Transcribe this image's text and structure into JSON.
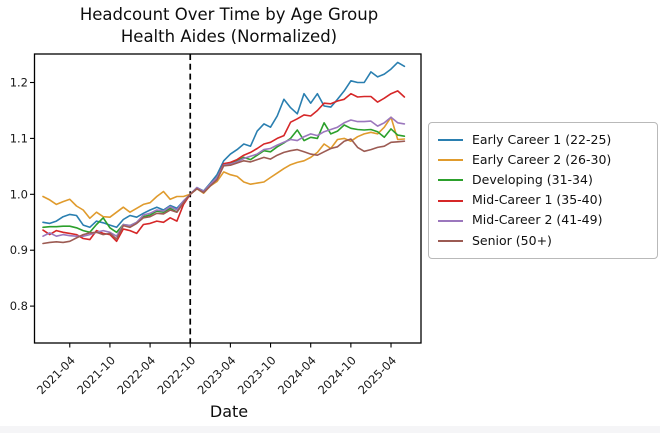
{
  "chart_data": {
    "type": "line",
    "title": "Headcount Over Time by Age Group",
    "subtitle": "Health Aides (Normalized)",
    "xlabel": "Date",
    "ylabel": "",
    "grid": false,
    "legend_position": "right outside",
    "ylim": [
      0.734,
      1.251
    ],
    "yticks": [
      0.8,
      0.9,
      1.0,
      1.1,
      1.2
    ],
    "xticks": [
      "2021-04",
      "2021-10",
      "2022-04",
      "2022-10",
      "2023-04",
      "2023-10",
      "2024-04",
      "2024-10",
      "2025-04"
    ],
    "baseline": {
      "date": "2022-10",
      "value": 1.0,
      "style": "black dashed vertical line"
    },
    "x": [
      "2020-12",
      "2021-01",
      "2021-02",
      "2021-03",
      "2021-04",
      "2021-05",
      "2021-06",
      "2021-07",
      "2021-08",
      "2021-09",
      "2021-10",
      "2021-11",
      "2021-12",
      "2022-01",
      "2022-02",
      "2022-03",
      "2022-04",
      "2022-05",
      "2022-06",
      "2022-07",
      "2022-08",
      "2022-09",
      "2022-10",
      "2022-11",
      "2022-12",
      "2023-01",
      "2023-02",
      "2023-03",
      "2023-04",
      "2023-05",
      "2023-06",
      "2023-07",
      "2023-08",
      "2023-09",
      "2023-10",
      "2023-11",
      "2023-12",
      "2024-01",
      "2024-02",
      "2024-03",
      "2024-04",
      "2024-05",
      "2024-06",
      "2024-07",
      "2024-08",
      "2024-09",
      "2024-10",
      "2024-11",
      "2024-12",
      "2025-01",
      "2025-02",
      "2025-03",
      "2025-04",
      "2025-05",
      "2025-06"
    ],
    "series": [
      {
        "name": "Early Career 1 (22-25)",
        "color": "#2a7fb0",
        "values": [
          0.95,
          0.948,
          0.952,
          0.96,
          0.964,
          0.962,
          0.945,
          0.941,
          0.952,
          0.949,
          0.945,
          0.941,
          0.955,
          0.962,
          0.959,
          0.966,
          0.972,
          0.977,
          0.972,
          0.98,
          0.975,
          0.988,
          1.0,
          1.012,
          1.006,
          1.02,
          1.035,
          1.06,
          1.072,
          1.08,
          1.09,
          1.086,
          1.113,
          1.126,
          1.12,
          1.14,
          1.17,
          1.155,
          1.144,
          1.18,
          1.163,
          1.18,
          1.158,
          1.156,
          1.17,
          1.185,
          1.203,
          1.2,
          1.2,
          1.219,
          1.21,
          1.215,
          1.224,
          1.236,
          1.229
        ]
      },
      {
        "name": "Early Career 2 (26-30)",
        "color": "#e09b2d",
        "values": [
          0.996,
          0.99,
          0.982,
          0.987,
          0.991,
          0.979,
          0.972,
          0.957,
          0.968,
          0.96,
          0.959,
          0.968,
          0.977,
          0.968,
          0.975,
          0.982,
          0.985,
          0.996,
          1.005,
          0.991,
          0.996,
          0.996,
          1.0,
          1.01,
          1.002,
          1.015,
          1.023,
          1.04,
          1.035,
          1.032,
          1.022,
          1.018,
          1.02,
          1.022,
          1.03,
          1.038,
          1.046,
          1.053,
          1.057,
          1.06,
          1.066,
          1.075,
          1.09,
          1.082,
          1.098,
          1.1,
          1.095,
          1.103,
          1.108,
          1.111,
          1.108,
          1.12,
          1.138,
          1.098,
          1.099
        ]
      },
      {
        "name": "Developing (31-34)",
        "color": "#2ca02c",
        "values": [
          0.941,
          0.942,
          0.942,
          0.943,
          0.943,
          0.94,
          0.935,
          0.932,
          0.946,
          0.958,
          0.94,
          0.932,
          0.946,
          0.944,
          0.95,
          0.96,
          0.963,
          0.97,
          0.968,
          0.975,
          0.968,
          0.985,
          1.0,
          1.01,
          1.004,
          1.018,
          1.03,
          1.052,
          1.055,
          1.06,
          1.066,
          1.062,
          1.07,
          1.078,
          1.076,
          1.085,
          1.092,
          1.1,
          1.115,
          1.096,
          1.102,
          1.1,
          1.128,
          1.108,
          1.113,
          1.124,
          1.118,
          1.116,
          1.115,
          1.116,
          1.112,
          1.102,
          1.117,
          1.106,
          1.104
        ]
      },
      {
        "name": "Mid-Career 1 (35-40)",
        "color": "#d62728",
        "values": [
          0.936,
          0.928,
          0.935,
          0.932,
          0.93,
          0.928,
          0.921,
          0.919,
          0.935,
          0.93,
          0.928,
          0.916,
          0.938,
          0.935,
          0.93,
          0.946,
          0.948,
          0.952,
          0.95,
          0.958,
          0.952,
          0.982,
          1.0,
          1.01,
          1.005,
          1.016,
          1.028,
          1.055,
          1.057,
          1.062,
          1.07,
          1.075,
          1.082,
          1.09,
          1.093,
          1.1,
          1.105,
          1.129,
          1.135,
          1.142,
          1.14,
          1.15,
          1.163,
          1.162,
          1.167,
          1.17,
          1.18,
          1.174,
          1.175,
          1.175,
          1.165,
          1.172,
          1.18,
          1.185,
          1.174
        ]
      },
      {
        "name": "Mid-Career 2 (41-49)",
        "color": "#9b77bd",
        "values": [
          0.925,
          0.931,
          0.925,
          0.928,
          0.926,
          0.925,
          0.925,
          0.928,
          0.932,
          0.935,
          0.932,
          0.925,
          0.946,
          0.944,
          0.95,
          0.963,
          0.966,
          0.972,
          0.97,
          0.978,
          0.972,
          0.988,
          1.0,
          1.012,
          1.005,
          1.018,
          1.03,
          1.052,
          1.054,
          1.058,
          1.064,
          1.068,
          1.072,
          1.08,
          1.082,
          1.088,
          1.093,
          1.098,
          1.096,
          1.103,
          1.108,
          1.105,
          1.112,
          1.116,
          1.12,
          1.128,
          1.133,
          1.13,
          1.13,
          1.131,
          1.122,
          1.128,
          1.138,
          1.128,
          1.126
        ]
      },
      {
        "name": "Senior (50+)",
        "color": "#9c5b53",
        "values": [
          0.912,
          0.914,
          0.915,
          0.914,
          0.916,
          0.922,
          0.928,
          0.931,
          0.932,
          0.928,
          0.93,
          0.92,
          0.944,
          0.941,
          0.948,
          0.958,
          0.96,
          0.966,
          0.965,
          0.972,
          0.968,
          0.985,
          1.0,
          1.01,
          1.003,
          1.015,
          1.026,
          1.051,
          1.052,
          1.056,
          1.06,
          1.058,
          1.062,
          1.066,
          1.063,
          1.07,
          1.075,
          1.078,
          1.08,
          1.076,
          1.072,
          1.07,
          1.076,
          1.082,
          1.085,
          1.095,
          1.099,
          1.084,
          1.077,
          1.08,
          1.084,
          1.086,
          1.093,
          1.094,
          1.095
        ]
      }
    ]
  }
}
